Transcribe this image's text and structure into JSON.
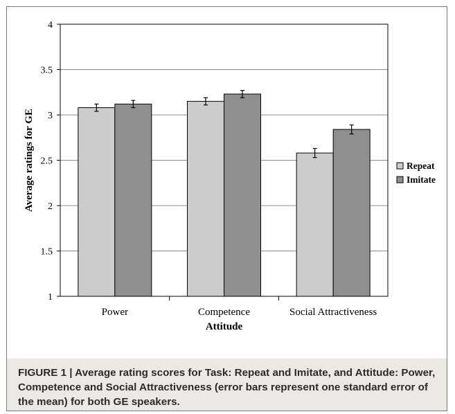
{
  "chart_data": {
    "type": "bar",
    "title": "",
    "xlabel": "Attitude",
    "ylabel": "Average ratings for GE",
    "categories": [
      "Power",
      "Competence",
      "Social Attractiveness"
    ],
    "series": [
      {
        "name": "Repeat",
        "values": [
          3.08,
          3.15,
          2.58
        ],
        "errors": [
          0.04,
          0.04,
          0.05
        ],
        "color": "#cccccc"
      },
      {
        "name": "Imitate",
        "values": [
          3.12,
          3.23,
          2.84
        ],
        "errors": [
          0.04,
          0.04,
          0.05
        ],
        "color": "#8f8f8f"
      }
    ],
    "ylim": [
      1,
      4
    ],
    "yticks": [
      "1",
      "1.5",
      "2",
      "2.5",
      "3",
      "3.5",
      "4"
    ],
    "grid": true,
    "legend_position": "right",
    "error_bars": "one standard error of the mean"
  },
  "caption": "FIGURE 1 | Average rating scores for Task: Repeat and Imitate, and Attitude: Power, Competence and Social Attractiveness (error bars represent one standard error of the mean) for both GE speakers."
}
